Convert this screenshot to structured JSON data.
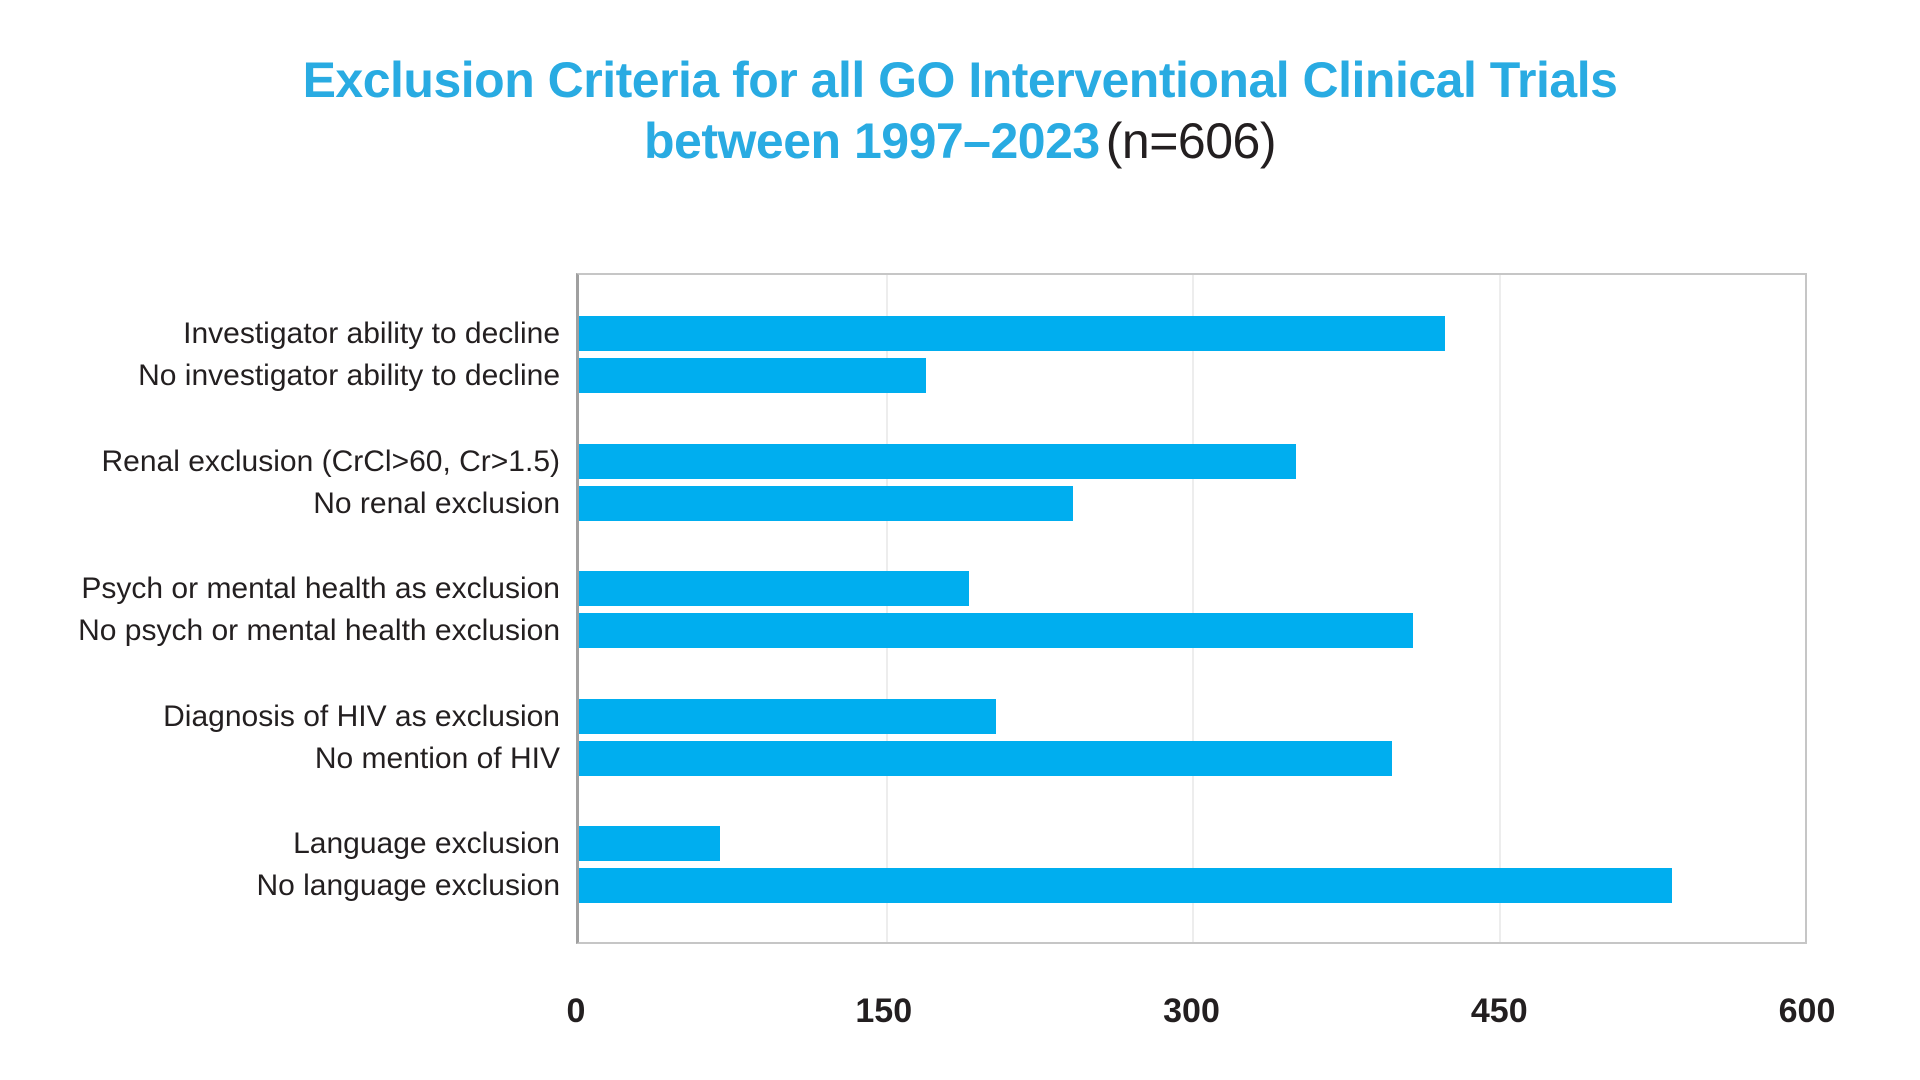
{
  "title": {
    "line1": "Exclusion Criteria for all GO Interventional Clinical Trials",
    "line2_highlight": "between 1997–2023",
    "line2_suffix": "(n=606)"
  },
  "colors": {
    "accent": "#00AEEF",
    "title": "#29ABE2",
    "text": "#231F20",
    "border": "#C6C6C6",
    "gridline": "#EDEDED"
  },
  "chart_data": {
    "type": "bar",
    "orientation": "horizontal",
    "title": "Exclusion Criteria for all GO Interventional Clinical Trials between 1997–2023 (n=606)",
    "n_total": 606,
    "categories": [
      "Investigator ability to decline",
      "No investigator ability to decline",
      "Renal exclusion (CrCl>60, Cr>1.5)",
      "No renal exclusion",
      "Psych or mental health as exclusion",
      "No psych or mental health exclusion",
      "Diagnosis of HIV as exclusion",
      "No mention of HIV",
      "Language exclusion",
      "No language exclusion"
    ],
    "values": [
      424,
      170,
      351,
      242,
      191,
      408,
      204,
      398,
      69,
      535
    ],
    "pairs": [
      [
        0,
        1
      ],
      [
        2,
        3
      ],
      [
        4,
        5
      ],
      [
        6,
        7
      ],
      [
        8,
        9
      ]
    ],
    "xlabel": "",
    "ylabel": "",
    "xlim": [
      0,
      600
    ],
    "xticks": [
      0,
      150,
      300,
      450,
      600
    ],
    "bar_color": "#00AEEF",
    "grid": true,
    "legend": false
  }
}
